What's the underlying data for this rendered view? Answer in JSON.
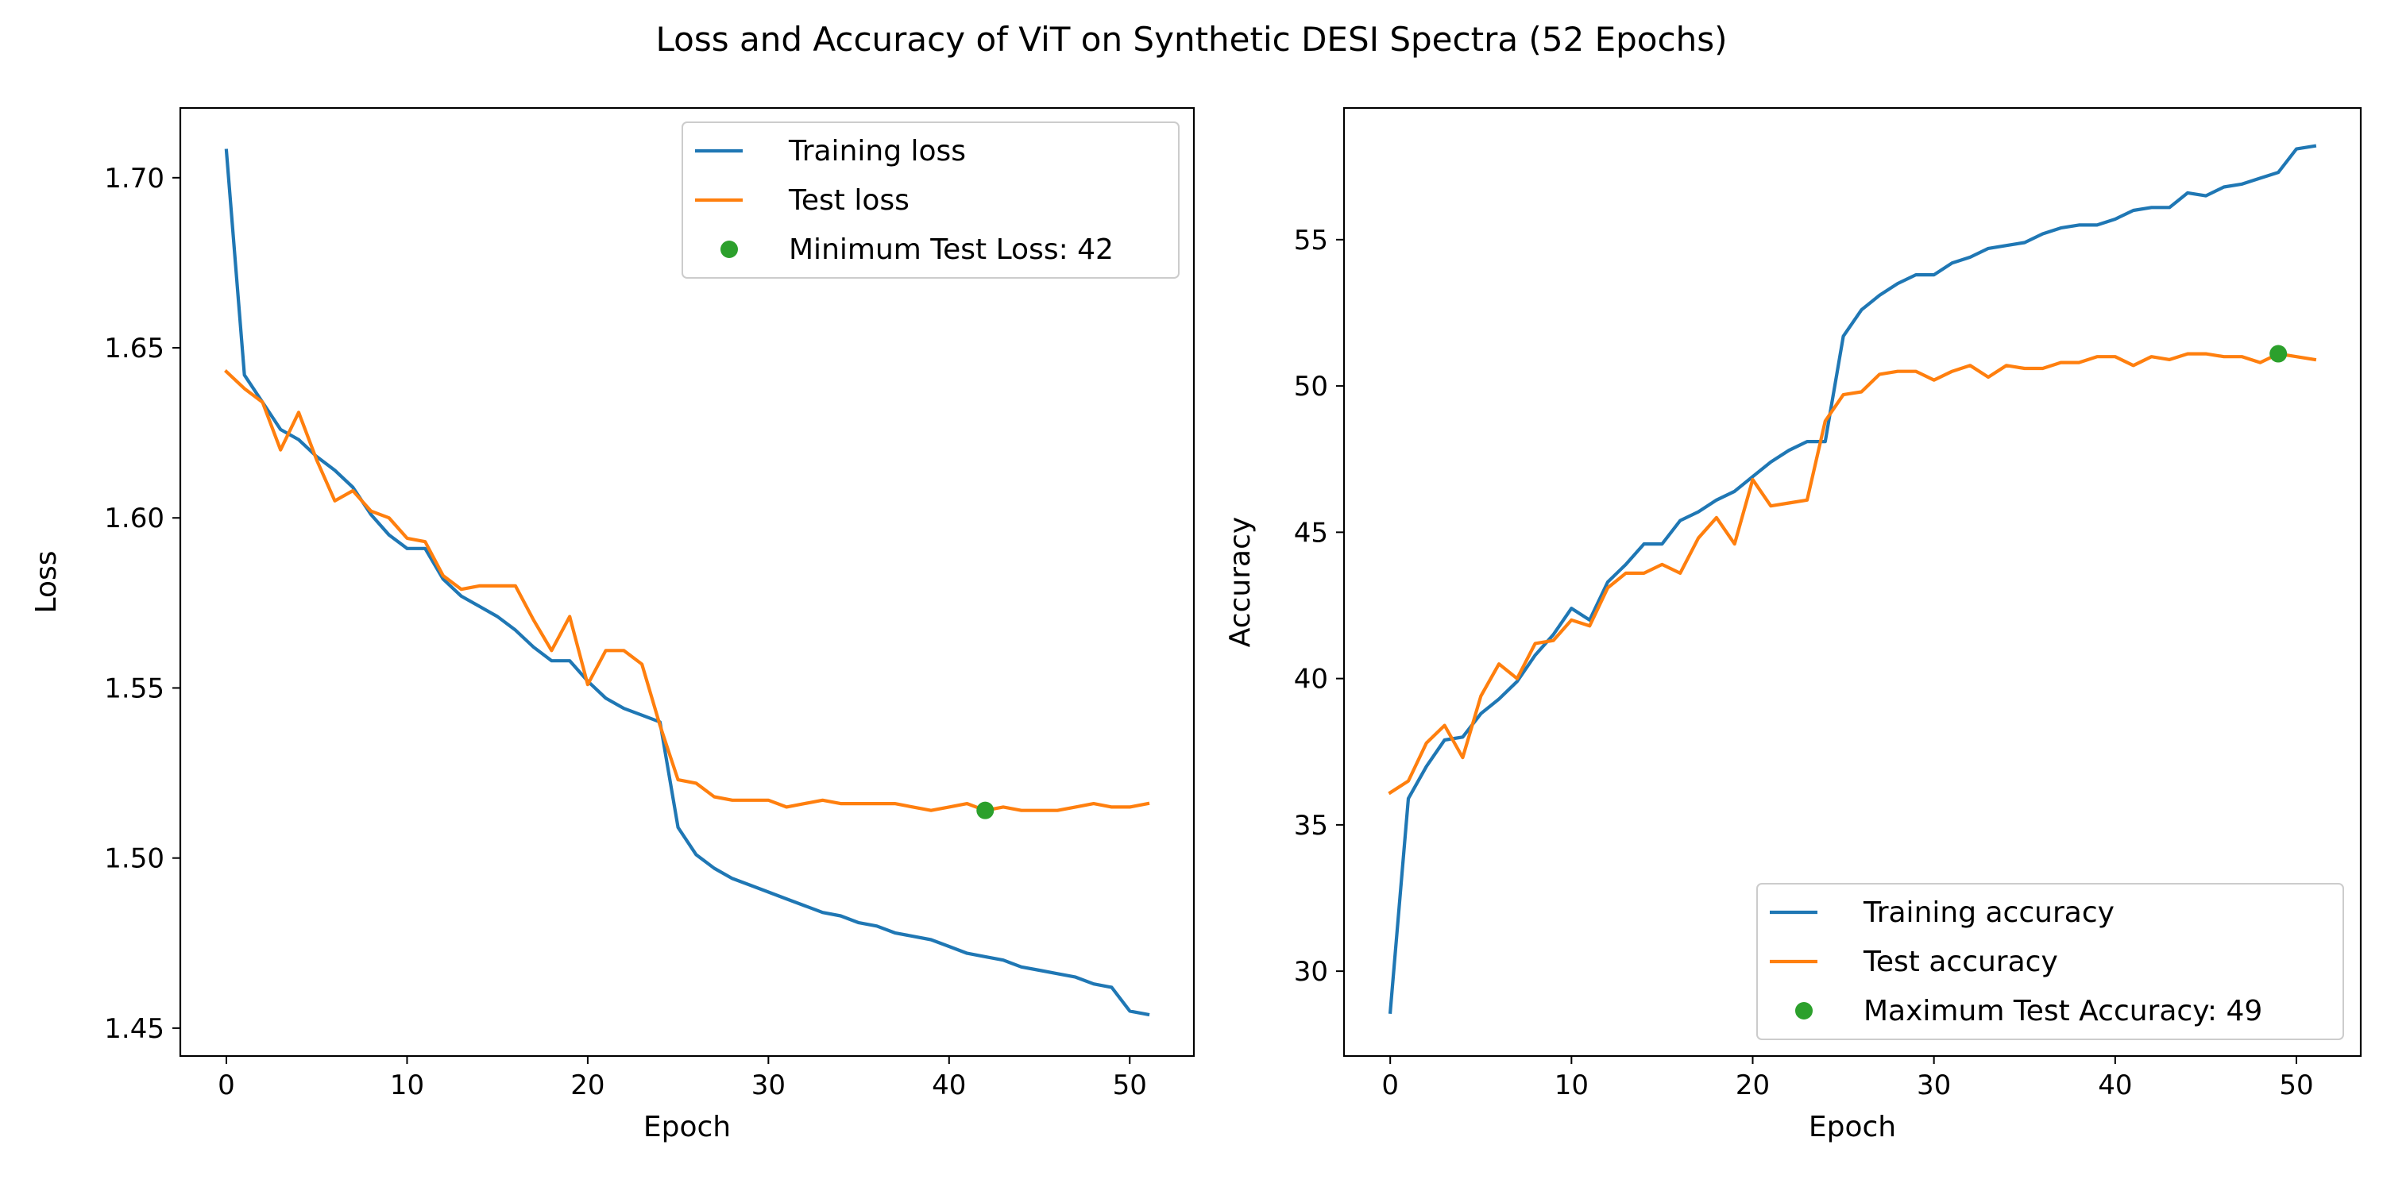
{
  "figure_title": "Loss and Accuracy of ViT on Synthetic DESI Spectra (52 Epochs)",
  "colors": {
    "training": "#1f77b4",
    "test": "#ff7f0e",
    "marker": "#2ca02c"
  },
  "chart_data": [
    {
      "type": "line",
      "xlabel": "Epoch",
      "ylabel": "Loss",
      "xlim": [
        -2.55,
        53.55
      ],
      "ylim": [
        1.4418,
        1.7205
      ],
      "xticks": [
        0,
        10,
        20,
        30,
        40,
        50
      ],
      "yticks": [
        1.45,
        1.5,
        1.55,
        1.6,
        1.65,
        1.7
      ],
      "ytick_labels": [
        "1.45",
        "1.50",
        "1.55",
        "1.60",
        "1.65",
        "1.70"
      ],
      "grid": false,
      "legend_position": "upper right",
      "x": [
        0,
        1,
        2,
        3,
        4,
        5,
        6,
        7,
        8,
        9,
        10,
        11,
        12,
        13,
        14,
        15,
        16,
        17,
        18,
        19,
        20,
        21,
        22,
        23,
        24,
        25,
        26,
        27,
        28,
        29,
        30,
        31,
        32,
        33,
        34,
        35,
        36,
        37,
        38,
        39,
        40,
        41,
        42,
        43,
        44,
        45,
        46,
        47,
        48,
        49,
        50,
        51
      ],
      "series": [
        {
          "name": "Training loss",
          "color_key": "training",
          "values": [
            1.708,
            1.642,
            1.634,
            1.626,
            1.623,
            1.618,
            1.614,
            1.609,
            1.601,
            1.595,
            1.591,
            1.591,
            1.582,
            1.577,
            1.574,
            1.571,
            1.567,
            1.562,
            1.558,
            1.558,
            1.552,
            1.547,
            1.544,
            1.542,
            1.54,
            1.509,
            1.501,
            1.497,
            1.494,
            1.492,
            1.49,
            1.488,
            1.486,
            1.484,
            1.483,
            1.481,
            1.48,
            1.478,
            1.477,
            1.476,
            1.474,
            1.472,
            1.471,
            1.47,
            1.468,
            1.467,
            1.466,
            1.465,
            1.463,
            1.462,
            1.455,
            1.454
          ]
        },
        {
          "name": "Test loss",
          "color_key": "test",
          "values": [
            1.643,
            1.638,
            1.634,
            1.62,
            1.631,
            1.617,
            1.605,
            1.608,
            1.602,
            1.6,
            1.594,
            1.593,
            1.583,
            1.579,
            1.58,
            1.58,
            1.58,
            1.57,
            1.561,
            1.571,
            1.551,
            1.561,
            1.561,
            1.557,
            1.539,
            1.523,
            1.522,
            1.518,
            1.517,
            1.517,
            1.517,
            1.515,
            1.516,
            1.517,
            1.516,
            1.516,
            1.516,
            1.516,
            1.515,
            1.514,
            1.515,
            1.516,
            1.514,
            1.515,
            1.514,
            1.514,
            1.514,
            1.515,
            1.516,
            1.515,
            1.515,
            1.516
          ]
        }
      ],
      "marker": {
        "label": "Minimum Test Loss: 42",
        "x": 42,
        "y": 1.514,
        "color_key": "marker"
      }
    },
    {
      "type": "line",
      "xlabel": "Epoch",
      "ylabel": "Accuracy",
      "xlim": [
        -2.55,
        53.55
      ],
      "ylim": [
        27.1,
        59.5
      ],
      "xticks": [
        0,
        10,
        20,
        30,
        40,
        50
      ],
      "yticks": [
        30,
        35,
        40,
        45,
        50,
        55
      ],
      "ytick_labels": [
        "30",
        "35",
        "40",
        "45",
        "50",
        "55"
      ],
      "grid": false,
      "legend_position": "lower right",
      "x": [
        0,
        1,
        2,
        3,
        4,
        5,
        6,
        7,
        8,
        9,
        10,
        11,
        12,
        13,
        14,
        15,
        16,
        17,
        18,
        19,
        20,
        21,
        22,
        23,
        24,
        25,
        26,
        27,
        28,
        29,
        30,
        31,
        32,
        33,
        34,
        35,
        36,
        37,
        38,
        39,
        40,
        41,
        42,
        43,
        44,
        45,
        46,
        47,
        48,
        49,
        50,
        51
      ],
      "series": [
        {
          "name": "Training accuracy",
          "color_key": "training",
          "values": [
            28.6,
            35.9,
            37.0,
            37.9,
            38.0,
            38.8,
            39.3,
            39.9,
            40.8,
            41.5,
            42.4,
            42.0,
            43.3,
            43.9,
            44.6,
            44.6,
            45.4,
            45.7,
            46.1,
            46.4,
            46.9,
            47.4,
            47.8,
            48.1,
            48.1,
            51.7,
            52.6,
            53.1,
            53.5,
            53.8,
            53.8,
            54.2,
            54.4,
            54.7,
            54.8,
            54.9,
            55.2,
            55.4,
            55.5,
            55.5,
            55.7,
            56.0,
            56.1,
            56.1,
            56.6,
            56.5,
            56.8,
            56.9,
            57.1,
            57.3,
            58.1,
            58.2
          ]
        },
        {
          "name": "Test accuracy",
          "color_key": "test",
          "values": [
            36.1,
            36.5,
            37.8,
            38.4,
            37.3,
            39.4,
            40.5,
            40.0,
            41.2,
            41.3,
            42.0,
            41.8,
            43.1,
            43.6,
            43.6,
            43.9,
            43.6,
            44.8,
            45.5,
            44.6,
            46.8,
            45.9,
            46.0,
            46.1,
            48.8,
            49.7,
            49.8,
            50.4,
            50.5,
            50.5,
            50.2,
            50.5,
            50.7,
            50.3,
            50.7,
            50.6,
            50.6,
            50.8,
            50.8,
            51.0,
            51.0,
            50.7,
            51.0,
            50.9,
            51.1,
            51.1,
            51.0,
            51.0,
            50.8,
            51.1,
            51.0,
            50.9
          ]
        }
      ],
      "marker": {
        "label": "Maximum Test Accuracy: 49",
        "x": 49,
        "y": 51.1,
        "color_key": "marker"
      }
    }
  ]
}
